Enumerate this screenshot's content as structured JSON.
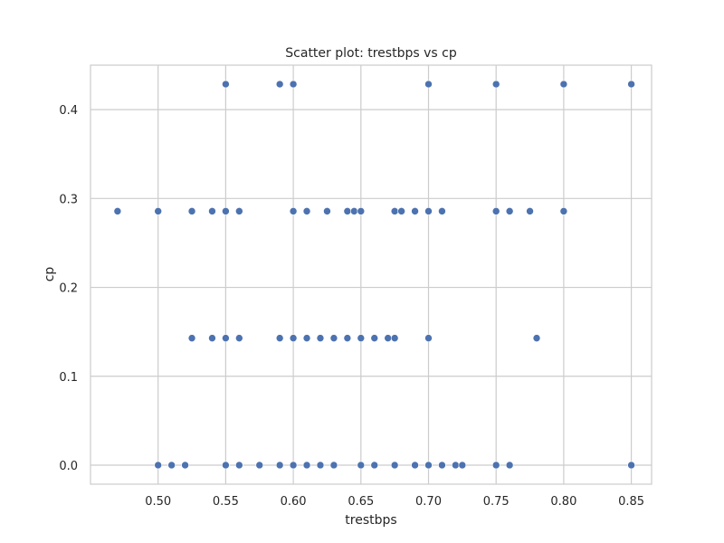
{
  "chart_data": {
    "type": "scatter",
    "title": "Scatter plot: trestbps vs cp",
    "xlabel": "trestbps",
    "ylabel": "cp",
    "xlim": [
      0.45,
      0.865
    ],
    "ylim": [
      -0.0214,
      0.45
    ],
    "xticks": [
      0.5,
      0.55,
      0.6,
      0.65,
      0.7,
      0.75,
      0.8,
      0.85
    ],
    "xtick_labels": [
      "0.50",
      "0.55",
      "0.60",
      "0.65",
      "0.70",
      "0.75",
      "0.80",
      "0.85"
    ],
    "yticks": [
      0.0,
      0.1,
      0.2,
      0.3,
      0.4
    ],
    "ytick_labels": [
      "0.0",
      "0.1",
      "0.2",
      "0.3",
      "0.4"
    ],
    "grid": true,
    "marker_color": "#4c72b0",
    "points": [
      [
        0.55,
        0.4286
      ],
      [
        0.59,
        0.4286
      ],
      [
        0.6,
        0.4286
      ],
      [
        0.7,
        0.4286
      ],
      [
        0.75,
        0.4286
      ],
      [
        0.8,
        0.4286
      ],
      [
        0.85,
        0.4286
      ],
      [
        0.47,
        0.2857
      ],
      [
        0.5,
        0.2857
      ],
      [
        0.525,
        0.2857
      ],
      [
        0.54,
        0.2857
      ],
      [
        0.55,
        0.2857
      ],
      [
        0.56,
        0.2857
      ],
      [
        0.6,
        0.2857
      ],
      [
        0.61,
        0.2857
      ],
      [
        0.625,
        0.2857
      ],
      [
        0.64,
        0.2857
      ],
      [
        0.645,
        0.2857
      ],
      [
        0.65,
        0.2857
      ],
      [
        0.675,
        0.2857
      ],
      [
        0.68,
        0.2857
      ],
      [
        0.69,
        0.2857
      ],
      [
        0.7,
        0.2857
      ],
      [
        0.71,
        0.2857
      ],
      [
        0.75,
        0.2857
      ],
      [
        0.76,
        0.2857
      ],
      [
        0.775,
        0.2857
      ],
      [
        0.8,
        0.2857
      ],
      [
        0.525,
        0.1429
      ],
      [
        0.54,
        0.1429
      ],
      [
        0.55,
        0.1429
      ],
      [
        0.56,
        0.1429
      ],
      [
        0.59,
        0.1429
      ],
      [
        0.6,
        0.1429
      ],
      [
        0.61,
        0.1429
      ],
      [
        0.62,
        0.1429
      ],
      [
        0.63,
        0.1429
      ],
      [
        0.64,
        0.1429
      ],
      [
        0.65,
        0.1429
      ],
      [
        0.66,
        0.1429
      ],
      [
        0.67,
        0.1429
      ],
      [
        0.675,
        0.1429
      ],
      [
        0.7,
        0.1429
      ],
      [
        0.78,
        0.1429
      ],
      [
        0.5,
        0.0
      ],
      [
        0.51,
        0.0
      ],
      [
        0.52,
        0.0
      ],
      [
        0.55,
        0.0
      ],
      [
        0.56,
        0.0
      ],
      [
        0.575,
        0.0
      ],
      [
        0.59,
        0.0
      ],
      [
        0.6,
        0.0
      ],
      [
        0.61,
        0.0
      ],
      [
        0.62,
        0.0
      ],
      [
        0.63,
        0.0
      ],
      [
        0.65,
        0.0
      ],
      [
        0.66,
        0.0
      ],
      [
        0.675,
        0.0
      ],
      [
        0.69,
        0.0
      ],
      [
        0.7,
        0.0
      ],
      [
        0.71,
        0.0
      ],
      [
        0.72,
        0.0
      ],
      [
        0.725,
        0.0
      ],
      [
        0.75,
        0.0
      ],
      [
        0.76,
        0.0
      ],
      [
        0.85,
        0.0
      ]
    ]
  }
}
